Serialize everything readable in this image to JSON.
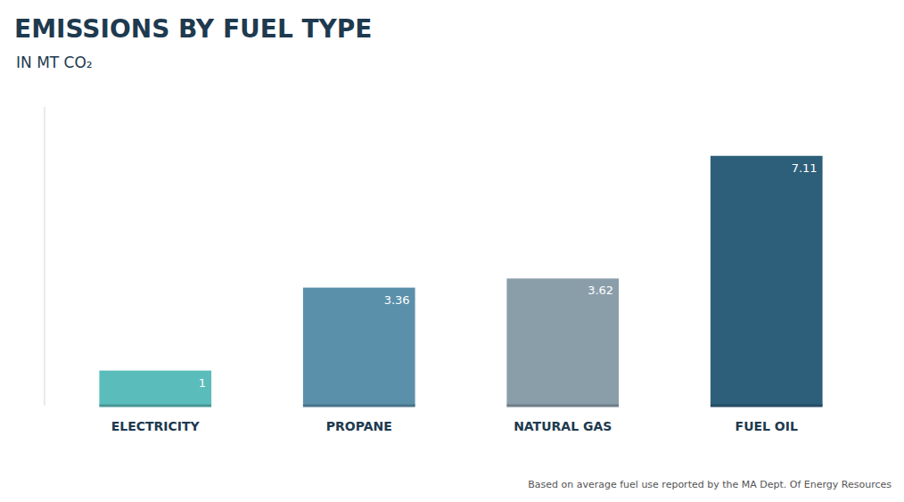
{
  "chart_data": {
    "type": "bar",
    "title": "EMISSIONS BY FUEL TYPE",
    "subtitle": "IN MT CO₂",
    "annotations": [
      "Based on average fuel use reported by the MA Dept. Of Energy Resources"
    ],
    "categories": [
      "ELECTRICITY",
      "PROPANE",
      "NATURAL GAS",
      "FUEL OIL"
    ],
    "values": [
      1.0,
      3.36,
      3.62,
      7.11
    ],
    "colors": [
      "#5bbcbc",
      "#5b90aa",
      "#8a9eaa",
      "#2e5f7a"
    ],
    "ylim": [
      0,
      8.5
    ],
    "data_labels": true,
    "grid": false,
    "tick_labels": "x"
  }
}
